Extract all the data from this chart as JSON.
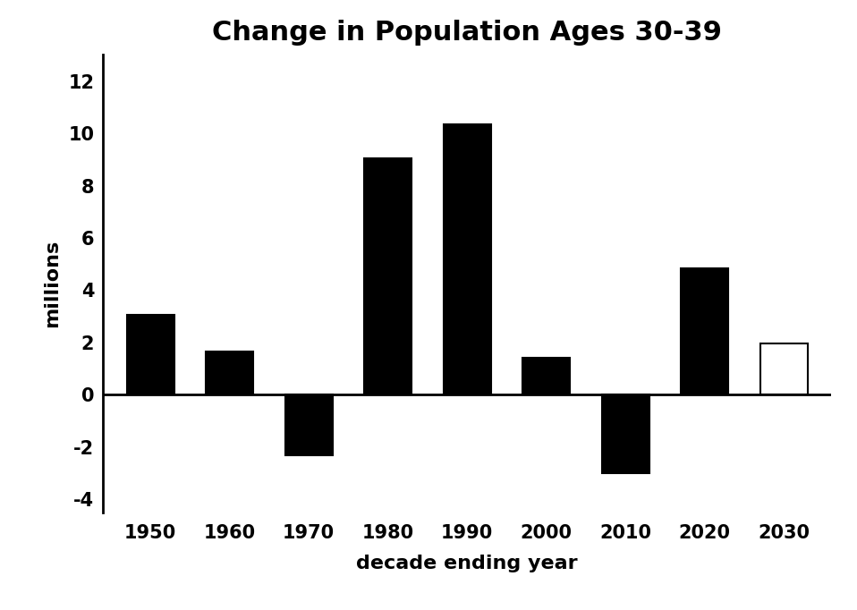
{
  "title": "Change in Population Ages 30-39",
  "xlabel": "decade ending year",
  "ylabel": "millions",
  "categories": [
    "1950",
    "1960",
    "1970",
    "1980",
    "1990",
    "2000",
    "2010",
    "2020",
    "2030"
  ],
  "values": [
    3.05,
    1.65,
    -2.3,
    9.05,
    10.35,
    1.4,
    -3.0,
    4.85,
    1.95
  ],
  "bar_colors": [
    "#000000",
    "#000000",
    "#000000",
    "#000000",
    "#000000",
    "#000000",
    "#000000",
    "#000000",
    "#ffffff"
  ],
  "bar_edge_colors": [
    "#000000",
    "#000000",
    "#000000",
    "#000000",
    "#000000",
    "#000000",
    "#000000",
    "#000000",
    "#000000"
  ],
  "ylim": [
    -4.5,
    13.0
  ],
  "yticks": [
    -4,
    -2,
    0,
    2,
    4,
    6,
    8,
    10,
    12
  ],
  "background_color": "#ffffff",
  "title_fontsize": 22,
  "axis_label_fontsize": 16,
  "tick_fontsize": 15,
  "bar_width": 0.6
}
